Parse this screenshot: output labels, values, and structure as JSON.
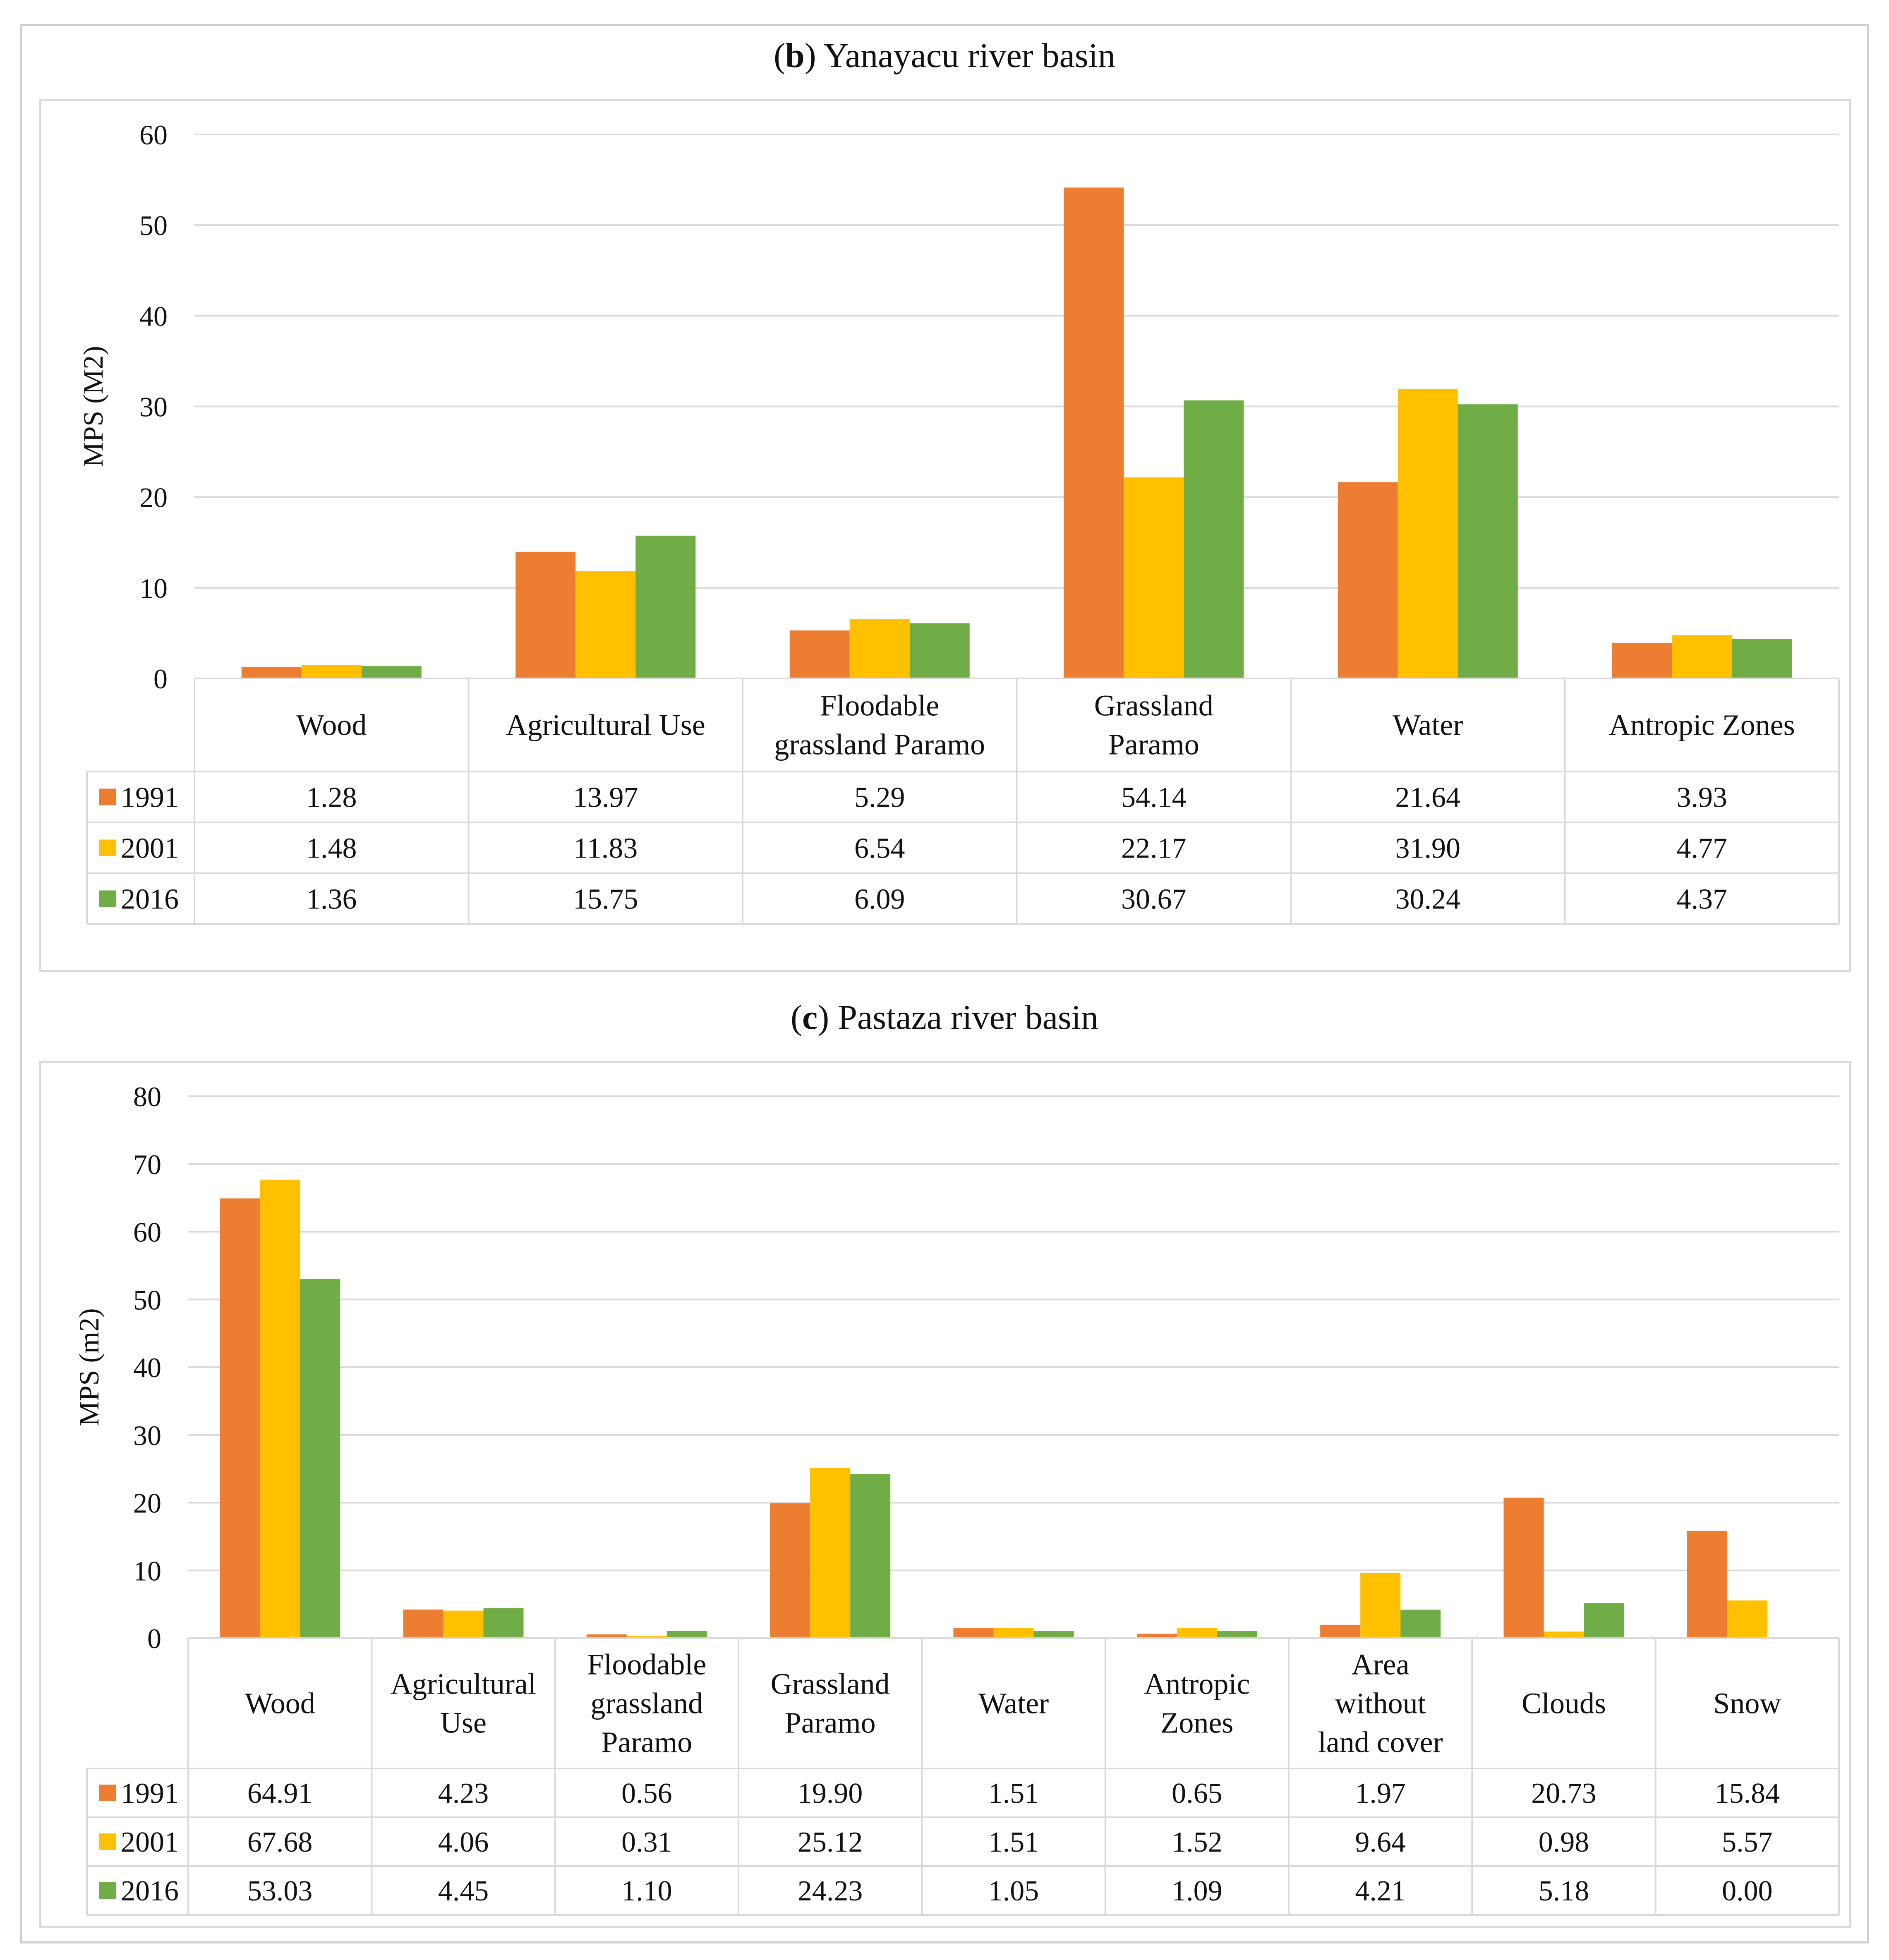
{
  "figure": {
    "border_color": "#cfcfcf"
  },
  "charts": [
    {
      "title_letter": "b",
      "title_text": "Yanayacu river basin",
      "chart_data": {
        "type": "bar",
        "ylabel": "MPS (M2)",
        "ylim": [
          0,
          60
        ],
        "yticks": [
          0,
          10,
          20,
          30,
          40,
          50,
          60
        ],
        "grid": true,
        "legend": "data-table-left",
        "categories": [
          [
            "Wood"
          ],
          [
            "Agricultural Use"
          ],
          [
            "Floodable",
            "grassland Paramo"
          ],
          [
            "Grassland",
            "Paramo"
          ],
          [
            "Water"
          ],
          [
            "Antropic Zones"
          ]
        ],
        "series": [
          {
            "name": "1991",
            "color": "#ED7D31",
            "values": [
              1.28,
              13.97,
              5.29,
              54.14,
              21.64,
              3.93
            ],
            "labels": [
              "1.28",
              "13.97",
              "5.29",
              "54.14",
              "21.64",
              "3.93"
            ]
          },
          {
            "name": "2001",
            "color": "#FFC000",
            "values": [
              1.48,
              11.83,
              6.54,
              22.17,
              31.9,
              4.77
            ],
            "labels": [
              "1.48",
              "11.83",
              "6.54",
              "22.17",
              "31.90",
              "4.77"
            ]
          },
          {
            "name": "2016",
            "color": "#70AD47",
            "values": [
              1.36,
              15.75,
              6.09,
              30.67,
              30.24,
              4.37
            ],
            "labels": [
              "1.36",
              "15.75",
              "6.09",
              "30.67",
              "30.24",
              "4.37"
            ]
          }
        ]
      }
    },
    {
      "title_letter": "c",
      "title_text": "Pastaza river basin",
      "chart_data": {
        "type": "bar",
        "ylabel": "MPS (m2)",
        "ylim": [
          0,
          80
        ],
        "yticks": [
          0,
          10,
          20,
          30,
          40,
          50,
          60,
          70,
          80
        ],
        "grid": true,
        "legend": "data-table-left",
        "categories": [
          [
            "Wood"
          ],
          [
            "Agricultural",
            "Use"
          ],
          [
            "Floodable",
            "grassland",
            "Paramo"
          ],
          [
            "Grassland",
            "Paramo"
          ],
          [
            "Water"
          ],
          [
            "Antropic",
            "Zones"
          ],
          [
            "Area",
            "without",
            "land cover"
          ],
          [
            "Clouds"
          ],
          [
            "Snow"
          ]
        ],
        "series": [
          {
            "name": "1991",
            "color": "#ED7D31",
            "values": [
              64.91,
              4.23,
              0.56,
              19.9,
              1.51,
              0.65,
              1.97,
              20.73,
              15.84
            ],
            "labels": [
              "64.91",
              "4.23",
              "0.56",
              "19.90",
              "1.51",
              "0.65",
              "1.97",
              "20.73",
              "15.84"
            ]
          },
          {
            "name": "2001",
            "color": "#FFC000",
            "values": [
              67.68,
              4.06,
              0.31,
              25.12,
              1.51,
              1.52,
              9.64,
              0.98,
              5.57
            ],
            "labels": [
              "67.68",
              "4.06",
              "0.31",
              "25.12",
              "1.51",
              "1.52",
              "9.64",
              "0.98",
              "5.57"
            ]
          },
          {
            "name": "2016",
            "color": "#70AD47",
            "values": [
              53.03,
              4.45,
              1.1,
              24.23,
              1.05,
              1.09,
              4.21,
              5.18,
              0.0
            ],
            "labels": [
              "53.03",
              "4.45",
              "1.10",
              "24.23",
              "1.05",
              "1.09",
              "4.21",
              "5.18",
              "0.00"
            ]
          }
        ]
      }
    }
  ]
}
